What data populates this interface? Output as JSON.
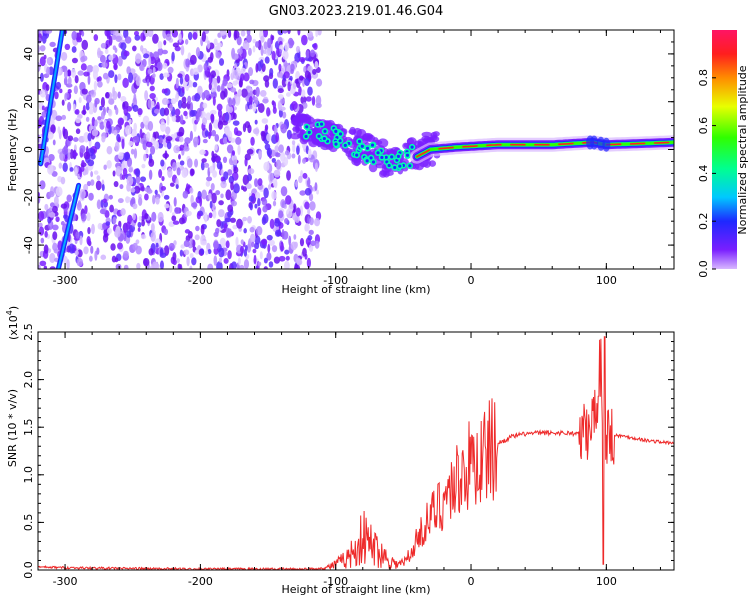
{
  "title": "GN03.2023.219.01.46.G04",
  "colors": {
    "snr_line": "#ee2a2a",
    "spectrum_purple": "#7a1fff",
    "axis": "#000000"
  },
  "chart_data": [
    {
      "type": "heatmap",
      "xlabel": "Height of straight line (km)",
      "ylabel": "Frequency (Hz)",
      "xlim": [
        -320,
        150
      ],
      "ylim": [
        -50,
        50
      ],
      "x_ticks": [
        -300,
        -200,
        -100,
        0,
        100
      ],
      "y_ticks": [
        -40,
        -20,
        0,
        20,
        40
      ],
      "colorbar": {
        "label": "Normalized spectral amplitude",
        "range": [
          0,
          1
        ],
        "ticks": [
          "0.0",
          "0.2",
          "0.4",
          "0.6",
          "0.8"
        ]
      },
      "features": {
        "noise_region_x": [
          -320,
          -112
        ],
        "diagonal_lines": [
          {
            "x": [
              -318,
              -302
            ],
            "y": [
              -6,
              50
            ]
          },
          {
            "x": [
              -305,
              -290
            ],
            "y": [
              -50,
              -15
            ]
          }
        ],
        "transition_center": [
          {
            "x": -125,
            "y": 9
          },
          {
            "x": -100,
            "y": 5
          },
          {
            "x": -80,
            "y": 0
          },
          {
            "x": -60,
            "y": -5
          },
          {
            "x": -45,
            "y": -3
          },
          {
            "x": -35,
            "y": 0
          },
          {
            "x": -20,
            "y": 1
          }
        ],
        "coherent_line": [
          {
            "x": -40,
            "y": -3
          },
          {
            "x": -30,
            "y": 0
          },
          {
            "x": -10,
            "y": 1
          },
          {
            "x": 20,
            "y": 2
          },
          {
            "x": 60,
            "y": 2
          },
          {
            "x": 90,
            "y": 3
          },
          {
            "x": 100,
            "y": 2
          },
          {
            "x": 150,
            "y": 3
          }
        ]
      }
    },
    {
      "type": "line",
      "xlabel": "Height of straight line (km)",
      "ylabel": "SNR (10 * v/v)",
      "y_multiplier": "(x10",
      "y_multiplier_exp": "4",
      "xlim": [
        -320,
        150
      ],
      "ylim": [
        0,
        25000
      ],
      "x_ticks": [
        -300,
        -200,
        -100,
        0,
        100
      ],
      "y_ticks": [
        "0.0",
        "0.5",
        "1.0",
        "1.5",
        "2.0",
        "2.5"
      ],
      "series": [
        {
          "x": [
            -320,
            -280,
            -200,
            -120,
            -108,
            -100,
            -92,
            -85,
            -80,
            -75,
            -70,
            -65,
            -60,
            -55,
            -50,
            -45,
            -40,
            -35,
            -30,
            -25,
            -20,
            -15,
            -10,
            -5,
            0,
            5,
            10,
            15,
            20,
            30,
            40,
            50,
            60,
            70,
            80,
            88,
            92,
            96,
            98,
            100,
            105,
            115,
            130,
            150
          ],
          "y": [
            300,
            200,
            100,
            100,
            200,
            600,
            1200,
            2200,
            3500,
            2800,
            2200,
            1600,
            1000,
            600,
            700,
            1500,
            3200,
            4500,
            5500,
            6500,
            7500,
            8500,
            9500,
            10500,
            11000,
            11500,
            12000,
            12700,
            13300,
            14000,
            14300,
            14400,
            14400,
            14400,
            14300,
            14500,
            17000,
            22000,
            14000,
            14400,
            14200,
            14000,
            13600,
            13300
          ]
        }
      ]
    }
  ]
}
